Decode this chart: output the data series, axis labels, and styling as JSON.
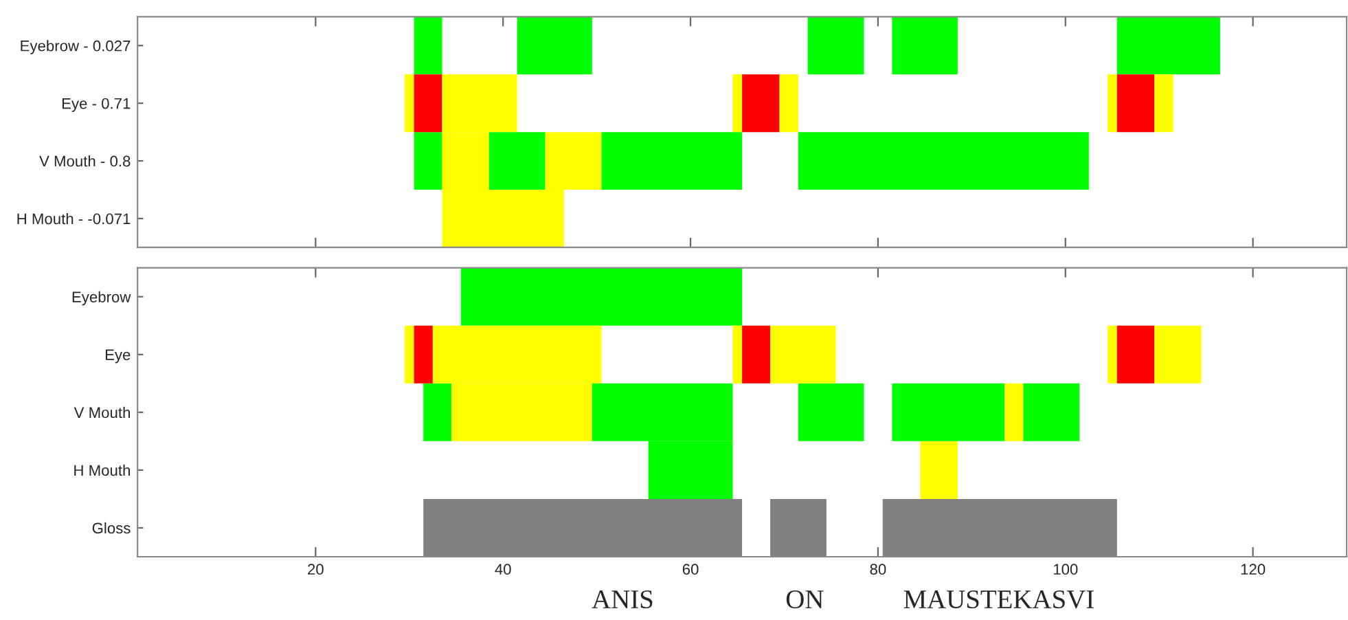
{
  "chart_data": [
    {
      "type": "bar",
      "orientation": "horizontal",
      "categories": [
        "Eyebrow - 0.027",
        "Eye - 0.71",
        "V Mouth - 0.8",
        "H Mouth - -0.071"
      ],
      "xlim": [
        1,
        130
      ],
      "xticks": [
        20,
        40,
        60,
        80,
        100,
        120
      ],
      "tick_labels": "y",
      "grid": false,
      "series": [
        {
          "base": [
            30.5,
            29.5,
            30.5,
            33.5
          ],
          "values": [
            3,
            1,
            3,
            13
          ],
          "colors": [
            "#00ff00",
            "#ffff00",
            "#00ff00",
            "#ffff00"
          ]
        },
        {
          "base": [
            41.5,
            30.5,
            33.5,
            null
          ],
          "values": [
            8,
            3,
            5,
            null
          ],
          "colors": [
            "#00ff00",
            "#ff0000",
            "#ffff00",
            null
          ]
        },
        {
          "base": [
            72.5,
            33.5,
            38.5,
            null
          ],
          "values": [
            6,
            8,
            6,
            null
          ],
          "colors": [
            "#00ff00",
            "#ffff00",
            "#00ff00",
            null
          ]
        },
        {
          "base": [
            81.5,
            64.5,
            44.5,
            null
          ],
          "values": [
            7,
            1,
            6,
            null
          ],
          "colors": [
            "#00ff00",
            "#ffff00",
            "#ffff00",
            null
          ]
        },
        {
          "base": [
            105.5,
            65.5,
            50.5,
            null
          ],
          "values": [
            11,
            4,
            15,
            null
          ],
          "colors": [
            "#00ff00",
            "#ff0000",
            "#00ff00",
            null
          ]
        },
        {
          "base": [
            null,
            69.5,
            71.5,
            null
          ],
          "values": [
            null,
            2,
            31,
            null
          ],
          "colors": [
            null,
            "#ffff00",
            "#00ff00",
            null
          ]
        },
        {
          "base": [
            null,
            104.5,
            null,
            null
          ],
          "values": [
            null,
            1,
            null,
            null
          ],
          "colors": [
            null,
            "#ffff00",
            null,
            null
          ]
        },
        {
          "base": [
            null,
            105.5,
            null,
            null
          ],
          "values": [
            null,
            4,
            null,
            null
          ],
          "colors": [
            null,
            "#ff0000",
            null,
            null
          ]
        },
        {
          "base": [
            null,
            109.5,
            null,
            null
          ],
          "values": [
            null,
            2,
            null,
            null
          ],
          "colors": [
            null,
            "#ffff00",
            null,
            null
          ]
        }
      ]
    },
    {
      "type": "bar",
      "orientation": "horizontal",
      "categories": [
        "Eyebrow",
        "Eye",
        "V Mouth",
        "H Mouth",
        "Gloss"
      ],
      "xlim": [
        1,
        130
      ],
      "xticks": [
        20,
        40,
        60,
        80,
        100,
        120
      ],
      "grid": false,
      "annotations": [
        "ANIS",
        "ON",
        "MAUSTEKASVI"
      ],
      "series": [
        {
          "base": [
            35.5,
            29.5,
            31.5,
            55.5,
            31.5
          ],
          "values": [
            30,
            1,
            3,
            9,
            34
          ],
          "colors": [
            "#00ff00",
            "#ffff00",
            "#00ff00",
            "#00ff00",
            "#808080"
          ]
        },
        {
          "base": [
            null,
            30.5,
            34.5,
            84.5,
            68.5
          ],
          "values": [
            null,
            2,
            15,
            4,
            6
          ],
          "colors": [
            null,
            "#ff0000",
            "#ffff00",
            "#ffff00",
            "#808080"
          ]
        },
        {
          "base": [
            null,
            32.5,
            49.5,
            null,
            80.5
          ],
          "values": [
            null,
            18,
            15,
            null,
            25
          ],
          "colors": [
            null,
            "#ffff00",
            "#00ff00",
            null,
            "#808080"
          ]
        },
        {
          "base": [
            null,
            64.5,
            71.5,
            null,
            null
          ],
          "values": [
            null,
            1,
            7,
            null,
            null
          ],
          "colors": [
            null,
            "#ffff00",
            "#00ff00",
            null,
            null
          ]
        },
        {
          "base": [
            null,
            65.5,
            81.5,
            null,
            null
          ],
          "values": [
            null,
            3,
            12,
            null,
            null
          ],
          "colors": [
            null,
            "#ff0000",
            "#00ff00",
            null,
            null
          ]
        },
        {
          "base": [
            null,
            68.5,
            93.5,
            null,
            null
          ],
          "values": [
            null,
            7,
            2,
            null,
            null
          ],
          "colors": [
            null,
            "#ffff00",
            "#ffff00",
            null,
            null
          ]
        },
        {
          "base": [
            null,
            104.5,
            95.5,
            null,
            null
          ],
          "values": [
            null,
            1,
            6,
            null,
            null
          ],
          "colors": [
            null,
            "#ffff00",
            "#00ff00",
            null,
            null
          ]
        },
        {
          "base": [
            null,
            105.5,
            null,
            null,
            null
          ],
          "values": [
            null,
            4,
            null,
            null,
            null
          ],
          "colors": [
            null,
            "#ff0000",
            null,
            null,
            null
          ]
        },
        {
          "base": [
            null,
            109.5,
            null,
            null,
            null
          ],
          "values": [
            null,
            5,
            null,
            null,
            null
          ],
          "colors": [
            null,
            "#ffff00",
            null,
            null,
            null
          ]
        }
      ]
    }
  ]
}
